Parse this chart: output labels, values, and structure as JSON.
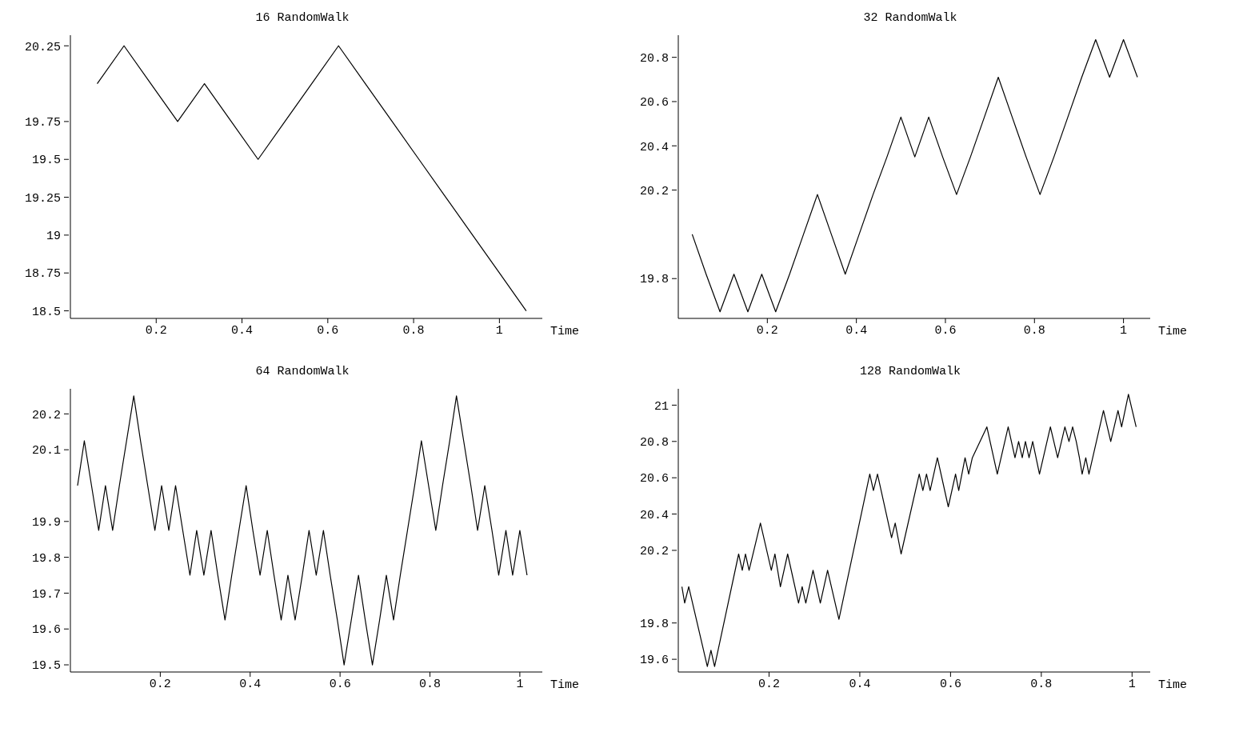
{
  "chart_data": [
    {
      "type": "line",
      "title": "16 RandomWalk",
      "xlabel": "Time",
      "xlim": [
        0,
        1.1
      ],
      "xticks": [
        0.2,
        0.4,
        0.6,
        0.8,
        1
      ],
      "ylim": [
        18.45,
        20.32
      ],
      "yticks": [
        18.5,
        18.75,
        19,
        19.25,
        19.5,
        19.75,
        20.25
      ],
      "marker": "none",
      "line_style": "solid",
      "series": [
        {
          "color": "#000000",
          "x": [
            0.0625,
            0.125,
            0.1875,
            0.25,
            0.3125,
            0.375,
            0.4375,
            0.5,
            0.5625,
            0.625,
            0.6875,
            0.75,
            0.8125,
            0.875,
            0.9375,
            1,
            1.0625
          ],
          "values": [
            20,
            20.25,
            20,
            19.75,
            20,
            19.75,
            19.5,
            19.75,
            20,
            20.25,
            20,
            19.75,
            19.5,
            19.25,
            19,
            18.75,
            18.5
          ]
        }
      ]
    },
    {
      "type": "line",
      "title": "32 RandomWalk",
      "xlabel": "Time",
      "xlim": [
        0,
        1.06
      ],
      "xticks": [
        0.2,
        0.4,
        0.6,
        0.8,
        1
      ],
      "ylim": [
        19.62,
        20.9
      ],
      "yticks": [
        19.8,
        20.2,
        20.4,
        20.6,
        20.8
      ],
      "marker": "none",
      "line_style": "solid",
      "series": [
        {
          "color": "#000000",
          "x": [
            0.03125,
            0.0625,
            0.09375,
            0.125,
            0.15625,
            0.1875,
            0.21875,
            0.25,
            0.28125,
            0.3125,
            0.34375,
            0.375,
            0.40625,
            0.4375,
            0.46875,
            0.5,
            0.53125,
            0.5625,
            0.59375,
            0.625,
            0.65625,
            0.6875,
            0.71875,
            0.75,
            0.78125,
            0.8125,
            0.84375,
            0.875,
            0.90625,
            0.9375,
            0.96875,
            1,
            1.03125
          ],
          "values": [
            20,
            19.82,
            19.65,
            19.82,
            19.65,
            19.82,
            19.65,
            19.82,
            20,
            20.18,
            20,
            19.82,
            20,
            20.18,
            20.35,
            20.53,
            20.35,
            20.53,
            20.35,
            20.18,
            20.35,
            20.53,
            20.71,
            20.53,
            20.35,
            20.18,
            20.35,
            20.53,
            20.71,
            20.88,
            20.71,
            20.88,
            20.71
          ]
        }
      ]
    },
    {
      "type": "line",
      "title": "64 RandomWalk",
      "xlabel": "Time",
      "xlim": [
        0,
        1.05
      ],
      "xticks": [
        0.2,
        0.4,
        0.6,
        0.8,
        1
      ],
      "ylim": [
        19.48,
        20.27
      ],
      "yticks": [
        19.5,
        19.6,
        19.7,
        19.8,
        19.9,
        20.1,
        20.2
      ],
      "marker": "none",
      "line_style": "solid",
      "series": [
        {
          "color": "#000000",
          "x": [
            0.016,
            0.031,
            0.047,
            0.063,
            0.078,
            0.094,
            0.109,
            0.125,
            0.141,
            0.156,
            0.172,
            0.188,
            0.203,
            0.219,
            0.234,
            0.25,
            0.266,
            0.281,
            0.297,
            0.313,
            0.328,
            0.344,
            0.359,
            0.375,
            0.391,
            0.406,
            0.422,
            0.438,
            0.453,
            0.469,
            0.484,
            0.5,
            0.516,
            0.531,
            0.547,
            0.563,
            0.578,
            0.594,
            0.609,
            0.625,
            0.641,
            0.656,
            0.672,
            0.688,
            0.703,
            0.719,
            0.734,
            0.75,
            0.766,
            0.781,
            0.797,
            0.813,
            0.828,
            0.844,
            0.859,
            0.875,
            0.891,
            0.906,
            0.922,
            0.938,
            0.953,
            0.969,
            0.984,
            1,
            1.016
          ],
          "values": [
            20,
            20.125,
            20,
            19.875,
            20,
            19.875,
            20,
            20.125,
            20.25,
            20.125,
            20,
            19.875,
            20,
            19.875,
            20,
            19.875,
            19.75,
            19.875,
            19.75,
            19.875,
            19.75,
            19.625,
            19.75,
            19.875,
            20,
            19.875,
            19.75,
            19.875,
            19.75,
            19.625,
            19.75,
            19.625,
            19.75,
            19.875,
            19.75,
            19.875,
            19.75,
            19.625,
            19.5,
            19.625,
            19.75,
            19.625,
            19.5,
            19.625,
            19.75,
            19.625,
            19.75,
            19.875,
            20,
            20.125,
            20,
            19.875,
            20,
            20.125,
            20.25,
            20.125,
            20,
            19.875,
            20,
            19.875,
            19.75,
            19.875,
            19.75,
            19.875,
            19.75
          ]
        }
      ]
    },
    {
      "type": "line",
      "title": "128 RandomWalk",
      "xlabel": "Time",
      "xlim": [
        0,
        1.04
      ],
      "xticks": [
        0.2,
        0.4,
        0.6,
        0.8,
        1
      ],
      "ylim": [
        19.53,
        21.09
      ],
      "yticks": [
        19.6,
        19.8,
        20.2,
        20.4,
        20.6,
        20.8,
        21
      ],
      "marker": "none",
      "line_style": "solid",
      "series": [
        {
          "color": "#000000",
          "x": [
            0.008,
            0.014,
            0.023,
            0.064,
            0.072,
            0.08,
            0.133,
            0.141,
            0.148,
            0.156,
            0.181,
            0.205,
            0.213,
            0.219,
            0.225,
            0.241,
            0.265,
            0.273,
            0.281,
            0.297,
            0.313,
            0.329,
            0.354,
            0.422,
            0.43,
            0.439,
            0.47,
            0.478,
            0.491,
            0.531,
            0.539,
            0.547,
            0.555,
            0.571,
            0.595,
            0.611,
            0.618,
            0.632,
            0.64,
            0.648,
            0.68,
            0.703,
            0.727,
            0.742,
            0.75,
            0.758,
            0.765,
            0.773,
            0.781,
            0.796,
            0.82,
            0.836,
            0.852,
            0.861,
            0.869,
            0.877,
            0.884,
            0.89,
            0.898,
            0.905,
            0.937,
            0.953,
            0.969,
            0.977,
            0.992,
            1.009
          ],
          "values": [
            20,
            19.91,
            20,
            19.56,
            19.65,
            19.56,
            20.18,
            20.09,
            20.18,
            20.09,
            20.35,
            20.09,
            20.18,
            20.09,
            20,
            20.18,
            19.91,
            20,
            19.91,
            20.09,
            19.91,
            20.09,
            19.82,
            20.62,
            20.53,
            20.62,
            20.27,
            20.35,
            20.18,
            20.62,
            20.53,
            20.62,
            20.53,
            20.71,
            20.44,
            20.62,
            20.53,
            20.71,
            20.62,
            20.71,
            20.88,
            20.62,
            20.88,
            20.71,
            20.8,
            20.71,
            20.8,
            20.71,
            20.8,
            20.62,
            20.88,
            20.71,
            20.88,
            20.8,
            20.88,
            20.8,
            20.71,
            20.62,
            20.71,
            20.62,
            20.97,
            20.8,
            20.97,
            20.88,
            21.06,
            20.88
          ]
        }
      ]
    }
  ]
}
